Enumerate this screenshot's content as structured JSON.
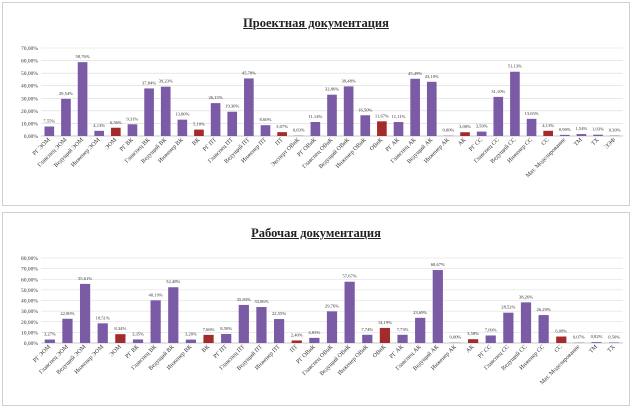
{
  "colors": {
    "primary": "#7b5aa6",
    "accent": "#a32b2b",
    "grid": "#d9d9d9"
  },
  "chart_data": [
    {
      "type": "bar",
      "title": "Проектная документация",
      "ylim": [
        0,
        70
      ],
      "yticks": [
        "0,00%",
        "10,00%",
        "20,00%",
        "30,00%",
        "40,00%",
        "50,00%",
        "60,00%",
        "70,00%"
      ],
      "categories": [
        "РГ ЭОМ",
        "Главспец ЭОМ",
        "Ведущий ЭОМ",
        "Инженер ЭОМ",
        "ЭОМ",
        "РГ ВК",
        "Главспец ВК",
        "Ведущий ВК",
        "Инженер ВК",
        "ВК",
        "РГ ПТ",
        "Главспец ПТ",
        "Ведущий ПТ",
        "Инженер ПТ",
        "ПТ",
        "Эксперт ОВиК",
        "РГ ОВиК",
        "Главспец ОВиК",
        "Ведущий ОВиК",
        "Инженер ОВиК",
        "ОВиК",
        "РГ АК",
        "Главспец АК",
        "Ведущий АК",
        "Инженер АК",
        "АК",
        "РГ СС",
        "Главспец СС",
        "Ведущий СС",
        "Инженер СС",
        "СС",
        "Мат. Моделирование",
        "ТМ",
        "ТХ",
        "ЭЭФ"
      ],
      "values": [
        7.55,
        29.54,
        58.76,
        4.13,
        6.56,
        9.31,
        37.84,
        39.23,
        13.0,
        5.1,
        26.15,
        19.3,
        45.78,
        8.6,
        3.07,
        0.03,
        11.14,
        32.86,
        39.48,
        16.5,
        11.67,
        11.11,
        45.49,
        43.1,
        0.0,
        3.0,
        3.5,
        31.1,
        51.13,
        13.65,
        4.13,
        0.9,
        1.54,
        1.03,
        0.3
      ],
      "labels": [
        "7,55%",
        "29,54%",
        "58,76%",
        "4,13%",
        "6,56%",
        "9,31%",
        "37,84%",
        "39,23%",
        "13,00%",
        "5,10%",
        "26,15%",
        "19,30%",
        "45,78%",
        "8,60%",
        "3,07%",
        "0,03%",
        "11,14%",
        "32,86%",
        "39,48%",
        "16,50%",
        "11,67%",
        "11,11%",
        "45,49%",
        "43,10%",
        "0,00%",
        "3,00%",
        "3,50%",
        "31,10%",
        "51,13%",
        "13,65%",
        "4,13%",
        "0,90%",
        "1,54%",
        "1,03%",
        "0,30%"
      ],
      "highlight": [
        4,
        9,
        14,
        20,
        25,
        30
      ]
    },
    {
      "type": "bar",
      "title": "Рабочая документация",
      "ylim": [
        0,
        80
      ],
      "yticks": [
        "0,00%",
        "10,00%",
        "20,00%",
        "30,00%",
        "40,00%",
        "50,00%",
        "60,00%",
        "70,00%",
        "80,00%"
      ],
      "categories": [
        "РГ ЭОМ",
        "Главспец ЭОМ",
        "Ведущий ЭОМ",
        "Инженер ЭОМ",
        "ЭОМ",
        "РГ ВК",
        "Главспец ВК",
        "Ведущий ВК",
        "Инженер ВК",
        "ВК",
        "РГ ПТ",
        "Главспец ПТ",
        "Ведущий ПТ",
        "Инженер ПТ",
        "ПТ",
        "РГ ОВиК",
        "Главспец ОВиК",
        "Ведущий ОВиК",
        "Инженер ОВиК",
        "ОВиК",
        "РГ АК",
        "Главспец АК",
        "Ведущий АК",
        "Инженер АК",
        "АК",
        "РГ СС",
        "Главспец СС",
        "Ведущий СС",
        "Инженер СС",
        "СС",
        "Мат. Моделирование",
        "ТМ",
        "ТХ"
      ],
      "values": [
        3.27,
        22.8,
        55.61,
        18.51,
        8.34,
        3.35,
        40.19,
        52.48,
        3.2,
        7.66,
        8.5,
        35.83,
        33.86,
        22.55,
        2.4,
        4.83,
        29.76,
        57.67,
        7.74,
        14.19,
        7.73,
        23.69,
        68.67,
        0.0,
        3.58,
        7.09,
        28.52,
        38.26,
        26.29,
        6.08,
        0.07,
        0.82,
        0.5
      ],
      "labels": [
        "3,27%",
        "22,80%",
        "55,61%",
        "18,51%",
        "8,34%",
        "3,35%",
        "40,19%",
        "52,48%",
        "3,20%",
        "7,66%",
        "8,50%",
        "35,83%",
        "33,86%",
        "22,55%",
        "2,40%",
        "4,83%",
        "29,76%",
        "57,67%",
        "7,74%",
        "14,19%",
        "7,73%",
        "23,69%",
        "68,67%",
        "0,00%",
        "3,58%",
        "7,09%",
        "28,52%",
        "38,26%",
        "26,29%",
        "6,08%",
        "0,07%",
        "0,82%",
        "0,50%"
      ],
      "highlight": [
        4,
        9,
        14,
        19,
        24,
        29
      ]
    }
  ]
}
